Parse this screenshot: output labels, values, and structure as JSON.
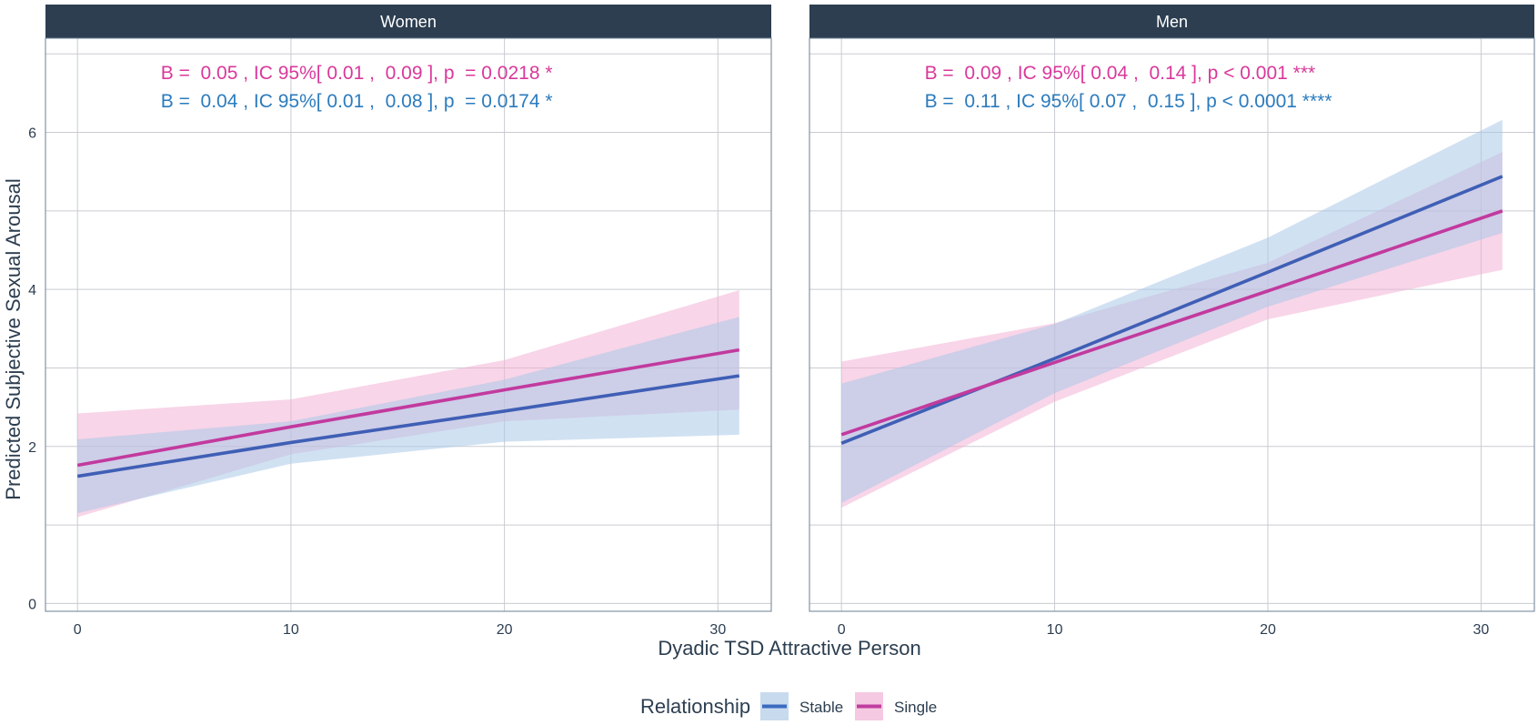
{
  "chart_data": {
    "type": "line",
    "xlabel": "Dyadic TSD Attractive Person",
    "ylabel": "Predicted Subjective Sexual Arousal",
    "xlim": [
      -1.5,
      32.5
    ],
    "ylim": [
      -0.1,
      7.2
    ],
    "x_ticks": [
      0,
      10,
      20,
      30
    ],
    "y_ticks": [
      0,
      2,
      4,
      6
    ],
    "grid": true,
    "legend": {
      "title": "Relationship",
      "position": "bottom",
      "entries": [
        {
          "name": "Stable",
          "color": "#3a6bc0",
          "fill": "#c8daee"
        },
        {
          "name": "Single",
          "color": "#c03da0",
          "fill": "#f5c9e1"
        }
      ]
    },
    "colors": {
      "stable_line": "#3f5fb5",
      "single_line": "#c23a9e",
      "stable_band": "#a9c8e8",
      "single_band": "#f2b3d5",
      "stable_text": "#2b7bbd",
      "single_text": "#d9389a",
      "strip": "#2c3e50"
    },
    "panels": [
      {
        "strip": "Women",
        "annotations": [
          {
            "text": "B =  0.05 , IC 95%[ 0.01 ,  0.09 ], p  = 0.0218 *",
            "series": "Single",
            "x": 3.9,
            "y": 6.68
          },
          {
            "text": "B =  0.04 , IC 95%[ 0.01 ,  0.08 ], p  = 0.0174 *",
            "series": "Stable",
            "x": 3.9,
            "y": 6.32
          }
        ],
        "series": [
          {
            "name": "Stable",
            "x": [
              0,
              10,
              20,
              31
            ],
            "y": [
              1.62,
              2.05,
              2.45,
              2.9
            ],
            "lower": [
              1.15,
              1.78,
              2.06,
              2.15
            ],
            "upper": [
              2.09,
              2.32,
              2.85,
              3.65
            ]
          },
          {
            "name": "Single",
            "x": [
              0,
              10,
              20,
              31
            ],
            "y": [
              1.76,
              2.25,
              2.72,
              3.23
            ],
            "lower": [
              1.1,
              1.9,
              2.32,
              2.47
            ],
            "upper": [
              2.42,
              2.6,
              3.1,
              3.99
            ]
          }
        ]
      },
      {
        "strip": "Men",
        "annotations": [
          {
            "text": "B =  0.09 , IC 95%[ 0.04 ,  0.14 ], p < 0.001 ***",
            "series": "Single",
            "x": 3.9,
            "y": 6.68
          },
          {
            "text": "B =  0.11 , IC 95%[ 0.07 ,  0.15 ], p < 0.0001 ****",
            "series": "Stable",
            "x": 3.9,
            "y": 6.32
          }
        ],
        "series": [
          {
            "name": "Stable",
            "x": [
              0,
              10,
              20,
              31
            ],
            "y": [
              2.04,
              3.12,
              4.22,
              5.44
            ],
            "lower": [
              1.28,
              2.68,
              3.78,
              4.72
            ],
            "upper": [
              2.8,
              3.56,
              4.66,
              6.16
            ]
          },
          {
            "name": "Single",
            "x": [
              0,
              10,
              20,
              31
            ],
            "y": [
              2.15,
              3.07,
              3.98,
              5.0
            ],
            "lower": [
              1.22,
              2.57,
              3.62,
              4.25
            ],
            "upper": [
              3.08,
              3.57,
              4.34,
              5.75
            ]
          }
        ]
      }
    ]
  }
}
